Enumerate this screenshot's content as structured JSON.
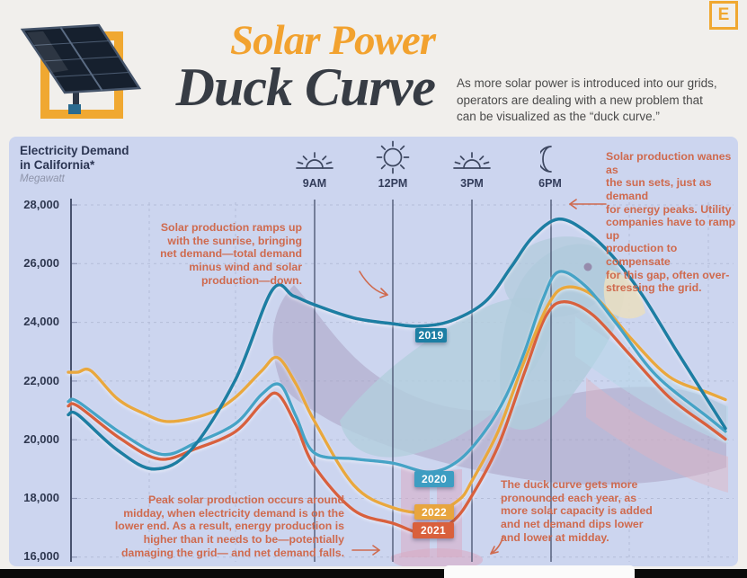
{
  "brand": {
    "logo_letter": "E"
  },
  "header": {
    "title_line1": "Solar Power",
    "title_line2": "Duck Curve",
    "subtitle": "As more solar power is introduced into our grids,\noperators are dealing with a new problem that\ncan be visualized as the “duck curve.”"
  },
  "chart": {
    "title": "Electricity Demand\nin California*",
    "unit": "Megawatt",
    "y_ticks": [
      "28,000",
      "26,000",
      "24,000",
      "22,000",
      "20,000",
      "18,000",
      "16,000"
    ],
    "time_labels": [
      "9AM",
      "12PM",
      "3PM",
      "6PM"
    ],
    "annotations": {
      "sunrise": "Solar production ramps up\nwith the sunrise, bringing\nnet demand—total demand\nminus wind and solar\nproduction—down.",
      "evening": "Solar production wanes as\nthe sun sets, just as demand\nfor energy peaks. Utility\ncompanies have to ramp up\nproduction to compensate\nfor this gap, often over-\nstressing the grid.",
      "midday": "Peak solar production occurs around\nmidday, when electricity demand is on the\nlower end. As a result, energy production is\nhigher than it needs to be—potentially\ndamaging the grid— and net demand falls.",
      "trend": "The duck curve gets more\npronounced each year, as\nmore solar capacity is added\nand net demand dips lower\nand lower at midday."
    },
    "colors": {
      "panel_bg": "#ccd5ef",
      "annotation": "#cf6a4e",
      "navy_text": "#2f3850",
      "grid_dash": "#b4bdd8",
      "title_orange": "#f2a22f",
      "title_dark": "#373c44",
      "brand_orange": "#f0a831"
    }
  },
  "chart_data": {
    "type": "line",
    "title": "Electricity Demand in California",
    "ylabel": "Megawatt",
    "ylim": [
      16000,
      28000
    ],
    "x_unit": "hour_of_day",
    "x_range_hours": [
      0,
      24
    ],
    "grid": true,
    "x_ticks": [
      {
        "hour": 9,
        "label": "9AM"
      },
      {
        "hour": 12,
        "label": "12PM"
      },
      {
        "hour": 15,
        "label": "3PM"
      },
      {
        "hour": 18,
        "label": "6PM"
      }
    ],
    "series": [
      {
        "name": "2019",
        "color": "#1e7ea3",
        "points": [
          [
            0,
            20850
          ],
          [
            1.5,
            19650
          ],
          [
            2.9,
            19000
          ],
          [
            4.3,
            19650
          ],
          [
            6,
            22050
          ],
          [
            7.4,
            25100
          ],
          [
            8.2,
            24900
          ],
          [
            9,
            24600
          ],
          [
            10.5,
            24150
          ],
          [
            12,
            23950
          ],
          [
            13,
            23870
          ],
          [
            14.2,
            24050
          ],
          [
            15.5,
            24700
          ],
          [
            16.5,
            25900
          ],
          [
            17.3,
            26900
          ],
          [
            18.3,
            27520
          ],
          [
            19.4,
            27050
          ],
          [
            20.5,
            26100
          ],
          [
            21.5,
            24900
          ],
          [
            22.7,
            23150
          ],
          [
            24,
            21300
          ]
        ]
      },
      {
        "name": "2020",
        "color": "#44a3c6",
        "points": [
          [
            0,
            21300
          ],
          [
            1.6,
            20250
          ],
          [
            3.2,
            19500
          ],
          [
            4.5,
            19900
          ],
          [
            6,
            20550
          ],
          [
            7,
            21550
          ],
          [
            7.7,
            21870
          ],
          [
            8.3,
            20800
          ],
          [
            9,
            19550
          ],
          [
            10.5,
            19350
          ],
          [
            12,
            19200
          ],
          [
            13.4,
            18900
          ],
          [
            14.5,
            19300
          ],
          [
            15.5,
            20300
          ],
          [
            16.3,
            21500
          ],
          [
            17,
            23000
          ],
          [
            17.7,
            24800
          ],
          [
            18.3,
            25720
          ],
          [
            19.3,
            25250
          ],
          [
            20.5,
            23950
          ],
          [
            22,
            22200
          ],
          [
            24,
            20750
          ]
        ]
      },
      {
        "name": "2021",
        "color": "#d8613e",
        "points": [
          [
            0,
            21150
          ],
          [
            1.6,
            20050
          ],
          [
            3.1,
            19340
          ],
          [
            4.5,
            19700
          ],
          [
            6,
            20280
          ],
          [
            7,
            21230
          ],
          [
            7.6,
            21560
          ],
          [
            8.3,
            20500
          ],
          [
            9,
            19100
          ],
          [
            10.5,
            17600
          ],
          [
            12,
            17150
          ],
          [
            13.3,
            16780
          ],
          [
            14.3,
            17250
          ],
          [
            15,
            18100
          ],
          [
            16,
            19800
          ],
          [
            17,
            22300
          ],
          [
            17.8,
            24200
          ],
          [
            18.5,
            24700
          ],
          [
            19.6,
            24250
          ],
          [
            21,
            22900
          ],
          [
            22.5,
            21450
          ],
          [
            24,
            20450
          ]
        ]
      },
      {
        "name": "2022",
        "color": "#e9a83e",
        "points": [
          [
            0,
            22300
          ],
          [
            0.5,
            22350
          ],
          [
            1.5,
            21400
          ],
          [
            2.5,
            20900
          ],
          [
            3.5,
            20620
          ],
          [
            5,
            20900
          ],
          [
            6,
            21450
          ],
          [
            7,
            22350
          ],
          [
            7.6,
            22800
          ],
          [
            8.3,
            21900
          ],
          [
            9,
            20640
          ],
          [
            10.5,
            18450
          ],
          [
            12,
            17680
          ],
          [
            13.5,
            17520
          ],
          [
            14.5,
            17950
          ],
          [
            15,
            18600
          ],
          [
            16,
            20300
          ],
          [
            17,
            22700
          ],
          [
            17.9,
            24600
          ],
          [
            18.6,
            25200
          ],
          [
            19.7,
            24850
          ],
          [
            21,
            23500
          ],
          [
            22.5,
            22150
          ],
          [
            24,
            21600
          ]
        ]
      }
    ],
    "badges": [
      {
        "label": "2019",
        "color": "#1d7fa4"
      },
      {
        "label": "2020",
        "color": "#3d9dc2"
      },
      {
        "label": "2022",
        "color": "#e8a53e"
      },
      {
        "label": "2021",
        "color": "#d9603c"
      }
    ]
  }
}
